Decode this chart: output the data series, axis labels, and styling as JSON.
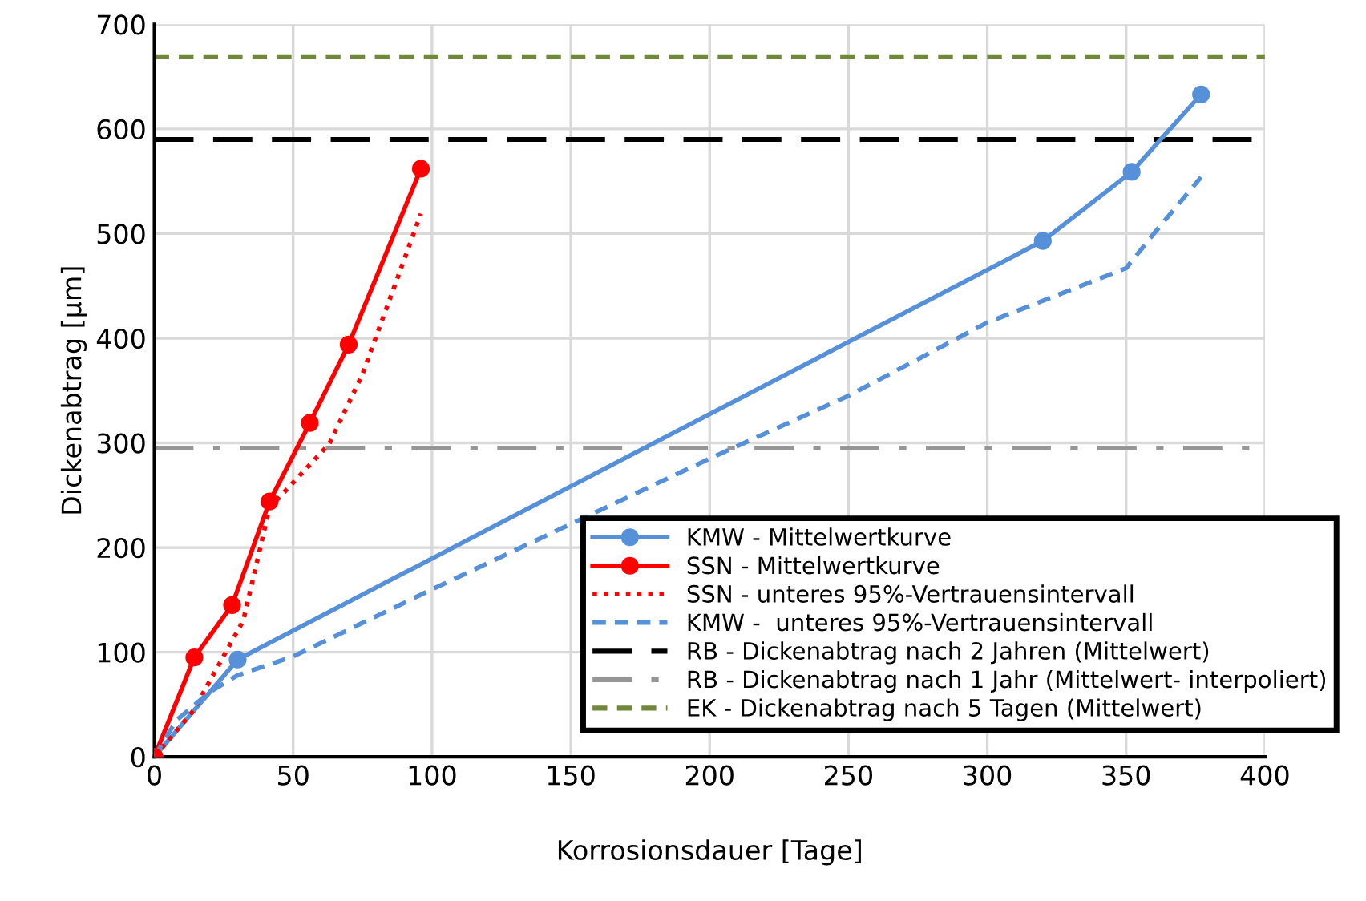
{
  "chart_data": {
    "type": "line",
    "xlabel": "Korrosionsdauer [Tage]",
    "ylabel": "Dickenabtrag [µm]",
    "xlim": [
      0,
      400
    ],
    "xticks": [
      0,
      50,
      100,
      150,
      200,
      250,
      300,
      350,
      400
    ],
    "ylim": [
      0,
      700
    ],
    "yticks": [
      0,
      100,
      200,
      300,
      400,
      500,
      600,
      700
    ],
    "grid": true,
    "legend": "bottom right",
    "series": [
      {
        "name": "KMW - Mittelwertkurve",
        "color": "#5590d9",
        "marker": "circle",
        "line_style": "solid",
        "x": [
          0,
          30,
          320,
          352,
          377
        ],
        "values": [
          0,
          93,
          493,
          559,
          633
        ]
      },
      {
        "name": "SSN - Mittelwertkurve",
        "color": "#ff0000",
        "marker": "circle",
        "line_style": "solid",
        "x": [
          0,
          14.4,
          28,
          41.5,
          56,
          70,
          96
        ],
        "values": [
          0,
          95,
          145,
          244,
          319,
          394,
          562
        ]
      },
      {
        "name": "SSN - unteres 95%-Vertrauensintervall",
        "color": "#ff0000",
        "marker": "none",
        "line_style": "dotted",
        "x": [
          0,
          14,
          32,
          41.5,
          63,
          75,
          96
        ],
        "values": [
          0,
          44,
          130,
          238,
          299,
          366,
          519
        ]
      },
      {
        "name": "KMW -  unteres 95%-Vertrauensintervall",
        "color": "#5590d9",
        "marker": "none",
        "line_style": "dashed",
        "x": [
          0,
          8,
          20,
          30,
          50,
          100,
          200,
          250,
          300,
          350,
          360,
          377
        ],
        "values": [
          0,
          35,
          62,
          78,
          96,
          160,
          285,
          345,
          415,
          467,
          500,
          554
        ]
      }
    ],
    "ref_lines": [
      {
        "axis": "y",
        "value": 590,
        "label": "RB - Dickenabtrag nach 2 Jahren (Mittelwert)",
        "color": "#000000",
        "line_style": "longdash"
      },
      {
        "axis": "y",
        "value": 295,
        "label": "RB - Dickenabtrag nach 1 Jahr (Mittelwert- interpoliert)",
        "color": "#969696",
        "line_style": "dashdot"
      },
      {
        "axis": "y",
        "value": 669,
        "label": "EK - Dickenabtrag nach 5 Tagen (Mittelwert)",
        "color": "#70883a",
        "line_style": "dashed"
      }
    ]
  }
}
